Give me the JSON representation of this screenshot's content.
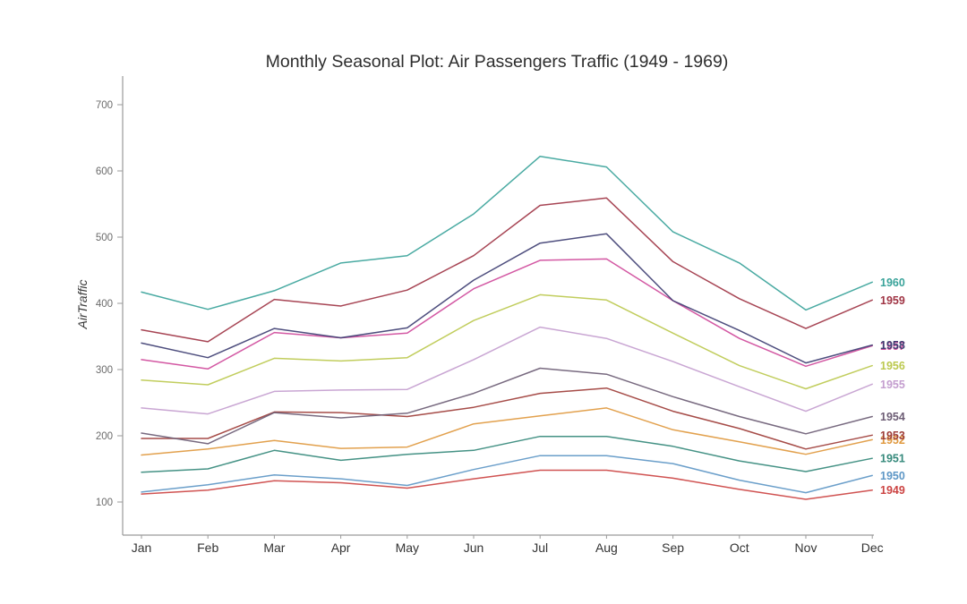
{
  "figure": {
    "title": "Monthly Seasonal Plot: Air Passengers Traffic (1949 - 1969)"
  },
  "chart_data": {
    "type": "line",
    "title": "Monthly Seasonal Plot: Air Passengers Traffic (1949 - 1969)",
    "xlabel": "",
    "ylabel": "AirTraffic",
    "categories": [
      "Jan",
      "Feb",
      "Mar",
      "Apr",
      "May",
      "Jun",
      "Jul",
      "Aug",
      "Sep",
      "Oct",
      "Nov",
      "Dec"
    ],
    "yticks": [
      100,
      200,
      300,
      400,
      500,
      600,
      700
    ],
    "ylim": [
      50,
      743
    ],
    "grid": false,
    "legend_position": "right-end-of-line-year-labels",
    "series": [
      {
        "name": "1949",
        "color": "#cc4443",
        "values": [
          112,
          118,
          132,
          129,
          121,
          135,
          148,
          148,
          136,
          119,
          104,
          118
        ]
      },
      {
        "name": "1950",
        "color": "#5e97c6",
        "values": [
          115,
          126,
          141,
          135,
          125,
          149,
          170,
          170,
          158,
          133,
          114,
          140
        ]
      },
      {
        "name": "1951",
        "color": "#35897b",
        "values": [
          145,
          150,
          178,
          163,
          172,
          178,
          199,
          199,
          184,
          162,
          146,
          166
        ]
      },
      {
        "name": "1952",
        "color": "#e0993f",
        "values": [
          171,
          180,
          193,
          181,
          183,
          218,
          230,
          242,
          209,
          191,
          172,
          194
        ]
      },
      {
        "name": "1953",
        "color": "#9e3d38",
        "values": [
          196,
          196,
          236,
          235,
          229,
          243,
          264,
          272,
          237,
          211,
          180,
          201
        ]
      },
      {
        "name": "1954",
        "color": "#6d5d75",
        "values": [
          204,
          188,
          235,
          227,
          234,
          264,
          302,
          293,
          259,
          229,
          203,
          229
        ]
      },
      {
        "name": "1955",
        "color": "#c49ecf",
        "values": [
          242,
          233,
          267,
          269,
          270,
          315,
          364,
          347,
          312,
          274,
          237,
          278
        ]
      },
      {
        "name": "1956",
        "color": "#bcc94f",
        "values": [
          284,
          277,
          317,
          313,
          318,
          374,
          413,
          405,
          355,
          306,
          271,
          306
        ]
      },
      {
        "name": "1957",
        "color": "#cf4a9b",
        "values": [
          315,
          301,
          356,
          348,
          355,
          422,
          465,
          467,
          404,
          347,
          305,
          336
        ]
      },
      {
        "name": "1958",
        "color": "#3f3f73",
        "values": [
          340,
          318,
          362,
          348,
          363,
          435,
          491,
          505,
          404,
          359,
          310,
          337
        ]
      },
      {
        "name": "1959",
        "color": "#a03545",
        "values": [
          360,
          342,
          406,
          396,
          420,
          472,
          548,
          559,
          463,
          407,
          362,
          405
        ]
      },
      {
        "name": "1960",
        "color": "#3aa39a",
        "values": [
          417,
          391,
          419,
          461,
          472,
          535,
          622,
          606,
          508,
          461,
          390,
          432
        ]
      }
    ]
  }
}
